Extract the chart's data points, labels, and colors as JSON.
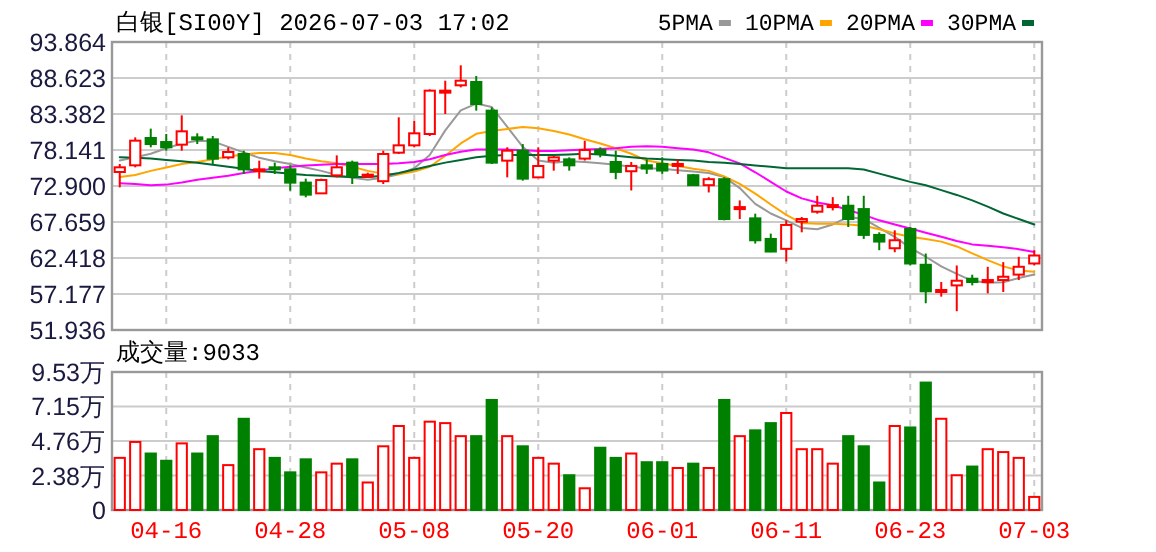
{
  "chart_data": [
    {
      "type": "candlestick",
      "title": "白银[SI00Y] 2026-07-03 17:02",
      "categories": [
        null,
        null,
        null,
        null,
        null,
        null,
        null,
        null,
        null,
        null,
        null,
        null,
        null,
        null,
        null,
        null,
        null,
        null,
        null,
        null,
        null,
        null,
        null,
        null,
        null,
        null,
        null,
        null,
        null,
        null,
        null,
        null,
        null,
        null,
        null,
        null,
        null,
        null,
        null,
        null,
        null,
        null,
        null,
        null,
        null,
        null,
        null,
        null,
        null,
        null,
        null,
        null,
        null,
        null,
        null,
        null,
        null,
        null,
        null,
        null
      ],
      "ohlc": [
        [
          74.94,
          76.1,
          72.7,
          75.62
        ],
        [
          75.91,
          79.98,
          75.62,
          79.5
        ],
        [
          79.89,
          81.25,
          78.53,
          79.01
        ],
        [
          79.3,
          80.47,
          78.04,
          78.53
        ],
        [
          78.92,
          83.19,
          78.04,
          80.86
        ],
        [
          79.98,
          80.57,
          79.01,
          79.79
        ],
        [
          79.69,
          80.18,
          76.1,
          76.88
        ],
        [
          77.07,
          78.53,
          76.78,
          77.85
        ],
        [
          77.56,
          78.04,
          74.65,
          75.33
        ],
        [
          75.13,
          76.59,
          73.97,
          75.33
        ],
        [
          75.62,
          76.3,
          74.65,
          75.42
        ],
        [
          75.33,
          75.91,
          72.22,
          73.39
        ],
        [
          73.39,
          73.97,
          71.25,
          71.64
        ],
        [
          71.83,
          73.97,
          71.74,
          73.77
        ],
        [
          74.45,
          77.36,
          74.16,
          75.62
        ],
        [
          76.3,
          76.59,
          73.19,
          74.36
        ],
        [
          74.36,
          74.84,
          74.16,
          74.55
        ],
        [
          73.6,
          78.04,
          73.19,
          77.56
        ],
        [
          77.75,
          82.9,
          77.56,
          78.82
        ],
        [
          78.82,
          82.41,
          78.53,
          80.57
        ],
        [
          80.47,
          86.97,
          80.18,
          86.78
        ],
        [
          86.59,
          88.23,
          83.38,
          86.78
        ],
        [
          87.56,
          90.47,
          87.26,
          88.23
        ],
        [
          88.04,
          88.91,
          83.87,
          84.84
        ],
        [
          83.87,
          84.35,
          76.1,
          76.3
        ],
        [
          76.59,
          78.53,
          74.16,
          78.04
        ],
        [
          78.04,
          79.01,
          73.68,
          73.97
        ],
        [
          74.16,
          78.53,
          74.16,
          75.81
        ],
        [
          76.59,
          77.27,
          75.13,
          77.07
        ],
        [
          76.78,
          77.07,
          75.13,
          75.91
        ],
        [
          76.89,
          79.49,
          76.6,
          78.14
        ],
        [
          78.14,
          78.53,
          77.08,
          77.66
        ],
        [
          76.4,
          78.04,
          73.89,
          74.95
        ],
        [
          75.05,
          76.4,
          72.25,
          75.82
        ],
        [
          75.92,
          76.79,
          74.66,
          75.44
        ],
        [
          76.11,
          77.08,
          74.66,
          75.15
        ],
        [
          75.82,
          76.79,
          74.66,
          76.11
        ],
        [
          74.47,
          74.66,
          72.92,
          73.02
        ],
        [
          73.02,
          74.18,
          71.96,
          73.89
        ],
        [
          73.89,
          74.18,
          67.9,
          68.09
        ],
        [
          69.64,
          70.8,
          68.09,
          69.83
        ],
        [
          68.19,
          68.87,
          64.52,
          65.0
        ],
        [
          65.19,
          65.97,
          63.26,
          63.36
        ],
        [
          63.75,
          67.9,
          61.91,
          67.23
        ],
        [
          67.71,
          68.38,
          66.16,
          68.09
        ],
        [
          69.16,
          71.48,
          68.87,
          70.03
        ],
        [
          69.83,
          71.28,
          69.35,
          70.12
        ],
        [
          70.03,
          71.48,
          66.93,
          68.09
        ],
        [
          69.54,
          71.48,
          65.2,
          65.78
        ],
        [
          65.78,
          66.16,
          63.55,
          64.81
        ],
        [
          63.84,
          66.45,
          63.26,
          65.0
        ],
        [
          66.65,
          66.93,
          61.33,
          61.62
        ],
        [
          61.43,
          63.07,
          55.83,
          57.57
        ],
        [
          57.47,
          58.92,
          56.79,
          57.76
        ],
        [
          58.43,
          61.33,
          54.67,
          59.11
        ],
        [
          59.4,
          59.98,
          58.43,
          58.92
        ],
        [
          58.92,
          61.14,
          57.27,
          59.21
        ],
        [
          59.21,
          61.82,
          57.47,
          59.69
        ],
        [
          60.0,
          62.59,
          59.21,
          61.14
        ],
        [
          61.62,
          63.55,
          61.33,
          62.78
        ]
      ],
      "colors": [
        "#ff0000",
        "#ff0000",
        "#008000",
        "#008000",
        "#ff0000",
        "#008000",
        "#008000",
        "#ff0000",
        "#008000",
        "#ff0000",
        "#008000",
        "#008000",
        "#008000",
        "#ff0000",
        "#ff0000",
        "#008000",
        "#ff0000",
        "#ff0000",
        "#ff0000",
        "#ff0000",
        "#ff0000",
        "#ff0000",
        "#ff0000",
        "#008000",
        "#008000",
        "#ff0000",
        "#008000",
        "#ff0000",
        "#ff0000",
        "#008000",
        "#ff0000",
        "#008000",
        "#008000",
        "#ff0000",
        "#008000",
        "#008000",
        "#ff0000",
        "#008000",
        "#ff0000",
        "#008000",
        "#ff0000",
        "#008000",
        "#008000",
        "#ff0000",
        "#ff0000",
        "#ff0000",
        "#ff0000",
        "#008000",
        "#008000",
        "#008000",
        "#ff0000",
        "#008000",
        "#008000",
        "#ff0000",
        "#ff0000",
        "#008000",
        "#ff0000",
        "#ff0000",
        "#ff0000",
        "#ff0000"
      ],
      "series": [
        {
          "name": "5PMA",
          "type": "line",
          "color": "#999999",
          "values": [
            76.6,
            77.1,
            77.6,
            78.4,
            79.1,
            79.5,
            79.4,
            78.6,
            77.8,
            77.0,
            76.5,
            76.1,
            75.6,
            75.1,
            74.5,
            74.1,
            73.8,
            74.1,
            74.6,
            75.5,
            77.4,
            81.0,
            83.9,
            84.9,
            84.4,
            81.5,
            78.6,
            76.6,
            76.3,
            76.5,
            76.4,
            76.2,
            76.0,
            75.7,
            75.5,
            75.4,
            75.2,
            75.0,
            74.8,
            74.2,
            72.6,
            70.3,
            68.9,
            67.9,
            66.8,
            66.6,
            67.3,
            68.4,
            68.1,
            66.8,
            65.5,
            63.9,
            62.6,
            61.2,
            60.1,
            59.1,
            58.8,
            58.9,
            59.5,
            60.0
          ]
        },
        {
          "name": "10PMA",
          "type": "line",
          "color": "#ffa500",
          "values": [
            74.2,
            74.5,
            75.1,
            75.6,
            76.1,
            76.4,
            76.8,
            77.2,
            77.5,
            77.7,
            77.7,
            77.4,
            76.9,
            76.5,
            76.2,
            75.7,
            75.1,
            74.7,
            74.6,
            75.0,
            75.7,
            77.3,
            79.1,
            80.5,
            80.9,
            81.2,
            81.5,
            81.3,
            80.9,
            80.4,
            79.7,
            79.1,
            78.4,
            77.6,
            76.6,
            76.2,
            75.8,
            75.4,
            75.1,
            74.3,
            73.2,
            71.8,
            70.2,
            68.7,
            67.5,
            67.4,
            67.4,
            67.3,
            67.1,
            66.6,
            66.0,
            65.5,
            65.2,
            64.8,
            64.1,
            63.1,
            62.1,
            61.2,
            60.6,
            60.4
          ]
        },
        {
          "name": "20PMA",
          "type": "line",
          "color": "#ff00ff",
          "values": [
            73.3,
            73.2,
            73.0,
            73.1,
            73.4,
            73.8,
            74.1,
            74.4,
            74.8,
            75.1,
            75.5,
            75.7,
            75.9,
            76.0,
            76.1,
            76.1,
            76.1,
            76.1,
            76.2,
            76.4,
            76.8,
            77.4,
            77.9,
            78.2,
            78.2,
            78.2,
            78.1,
            78.0,
            78.0,
            78.1,
            78.2,
            78.3,
            78.4,
            78.6,
            78.7,
            78.6,
            78.4,
            78.2,
            77.8,
            77.0,
            76.2,
            74.9,
            73.5,
            72.1,
            71.1,
            70.5,
            70.1,
            69.4,
            68.7,
            67.9,
            67.3,
            66.7,
            66.1,
            65.5,
            64.9,
            64.4,
            64.2,
            64.0,
            63.7,
            63.3
          ]
        },
        {
          "name": "30PMA",
          "type": "line",
          "color": "#006633",
          "values": [
            77.1,
            77.0,
            76.9,
            76.7,
            76.5,
            76.3,
            76.0,
            75.7,
            75.4,
            75.1,
            74.9,
            74.7,
            74.5,
            74.4,
            74.3,
            74.2,
            74.2,
            74.4,
            74.8,
            75.3,
            75.8,
            76.3,
            76.7,
            77.1,
            77.3,
            77.4,
            77.4,
            77.4,
            77.4,
            77.5,
            77.6,
            77.5,
            77.3,
            77.1,
            76.9,
            76.8,
            76.7,
            76.6,
            76.4,
            76.3,
            76.1,
            75.9,
            75.7,
            75.5,
            75.5,
            75.5,
            75.5,
            75.5,
            75.3,
            74.7,
            74.1,
            73.5,
            73.0,
            72.3,
            71.6,
            70.8,
            69.9,
            68.9,
            68.1,
            67.3
          ]
        }
      ],
      "ylim": [
        51.936,
        93.864
      ],
      "yticks": [
        51.936,
        57.177,
        62.418,
        67.659,
        {
          "value": 72.9,
          "label": "72.900"
        },
        78.141,
        83.382,
        88.623,
        93.864
      ],
      "grid": true,
      "legend": "top right",
      "tick_labels": "y"
    },
    {
      "type": "bar",
      "title": "成交量:9033",
      "categories": [
        null,
        null,
        null,
        "04-16",
        null,
        null,
        null,
        null,
        null,
        null,
        null,
        "04-28",
        null,
        null,
        null,
        null,
        null,
        null,
        null,
        "05-08",
        null,
        null,
        null,
        null,
        null,
        null,
        null,
        "05-20",
        null,
        null,
        null,
        null,
        null,
        null,
        null,
        "06-01",
        null,
        null,
        null,
        null,
        null,
        null,
        null,
        "06-11",
        null,
        null,
        null,
        null,
        null,
        null,
        null,
        "06-23",
        null,
        null,
        null,
        null,
        null,
        null,
        null,
        "07-03"
      ],
      "values": [
        3.6,
        4.7,
        3.9,
        3.4,
        4.6,
        3.9,
        5.1,
        3.1,
        6.3,
        4.2,
        3.6,
        2.6,
        3.5,
        2.6,
        3.2,
        3.5,
        1.9,
        4.4,
        5.8,
        3.6,
        6.1,
        6.0,
        5.1,
        5.1,
        7.6,
        5.1,
        4.4,
        3.6,
        3.2,
        2.4,
        1.5,
        4.3,
        3.6,
        3.9,
        3.3,
        3.3,
        2.9,
        3.2,
        2.9,
        7.6,
        5.1,
        5.5,
        6.0,
        6.7,
        4.2,
        4.2,
        3.2,
        5.1,
        4.4,
        1.9,
        5.8,
        5.7,
        8.8,
        6.3,
        2.4,
        3.0,
        4.2,
        4.0,
        3.6,
        0.9033
      ],
      "colors": [
        "#ff0000",
        "#ff0000",
        "#008000",
        "#008000",
        "#ff0000",
        "#008000",
        "#008000",
        "#ff0000",
        "#008000",
        "#ff0000",
        "#008000",
        "#008000",
        "#008000",
        "#ff0000",
        "#ff0000",
        "#008000",
        "#ff0000",
        "#ff0000",
        "#ff0000",
        "#ff0000",
        "#ff0000",
        "#ff0000",
        "#ff0000",
        "#008000",
        "#008000",
        "#ff0000",
        "#008000",
        "#ff0000",
        "#ff0000",
        "#008000",
        "#ff0000",
        "#008000",
        "#008000",
        "#ff0000",
        "#008000",
        "#008000",
        "#ff0000",
        "#008000",
        "#ff0000",
        "#008000",
        "#ff0000",
        "#008000",
        "#008000",
        "#ff0000",
        "#ff0000",
        "#ff0000",
        "#ff0000",
        "#008000",
        "#008000",
        "#008000",
        "#ff0000",
        "#008000",
        "#008000",
        "#ff0000",
        "#ff0000",
        "#008000",
        "#ff0000",
        "#ff0000",
        "#ff0000",
        "#ff0000"
      ],
      "ylim": [
        0,
        9.53
      ],
      "yticks": [
        0,
        {
          "value": 2.38,
          "label": "2.38万"
        },
        {
          "value": 4.76,
          "label": "4.76万"
        },
        {
          "value": 7.15,
          "label": "7.15万"
        },
        {
          "value": 9.53,
          "label": "9.53万"
        }
      ],
      "grid": true
    }
  ]
}
